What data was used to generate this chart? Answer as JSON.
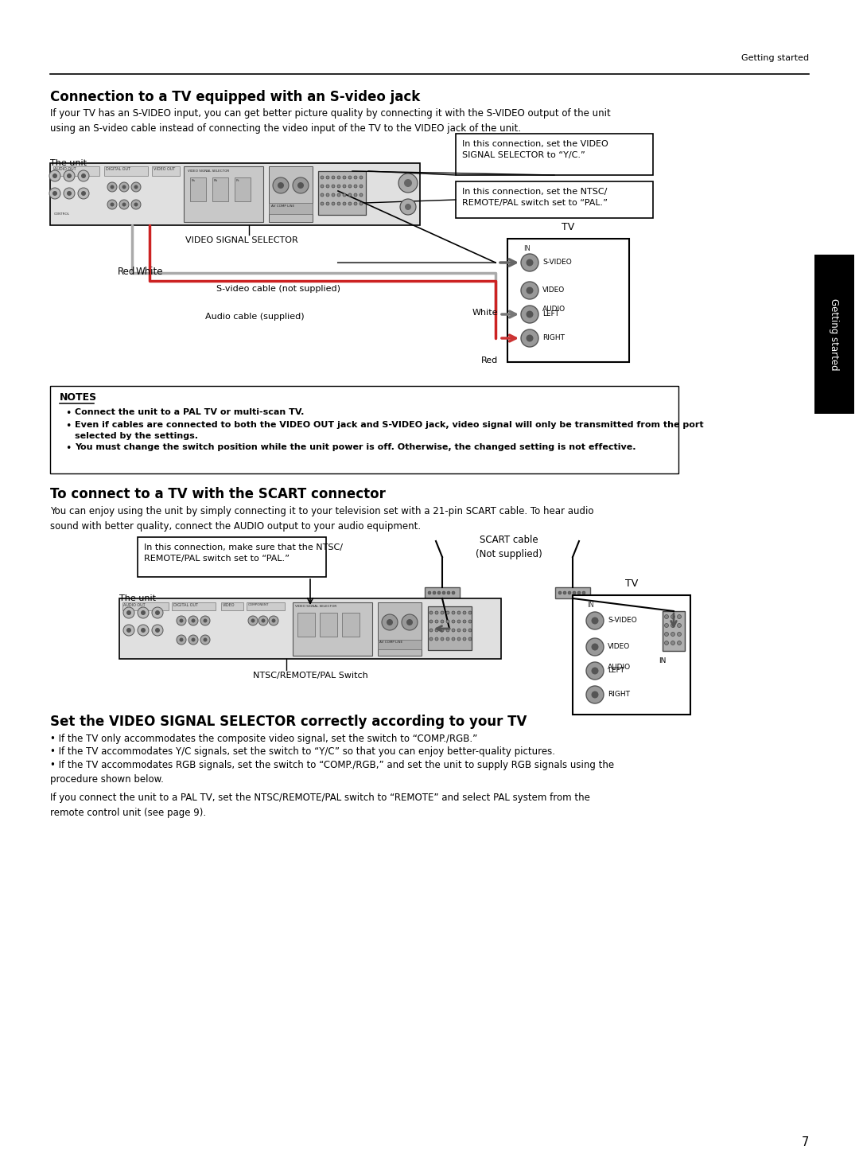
{
  "page_bg": "#ffffff",
  "header_text": "Getting started",
  "section1_title": "Connection to a TV equipped with an S-video jack",
  "section1_body": "If your TV has an S-VIDEO input, you can get better picture quality by connecting it with the S-VIDEO output of the unit\nusing an S-video cable instead of connecting the video input of the TV to the VIDEO jack of the unit.",
  "callout1_text": "In this connection, set the VIDEO\nSIGNAL SELECTOR to “Y/C.”",
  "callout2_text": "In this connection, set the NTSC/\nREMOTE/PAL switch set to “PAL.”",
  "video_sel_label": "VIDEO SIGNAL SELECTOR",
  "svideo_label": "S-video cable (not supplied)",
  "audio_label": "Audio cable (supplied)",
  "tv_label1": "TV",
  "white_label": "White",
  "red_label": "Red",
  "the_unit_label": "The unit",
  "notes_title": "NOTES",
  "notes_bullets": [
    "Connect the unit to a PAL TV or multi-scan TV.",
    "Even if cables are connected to both the VIDEO OUT jack and S-VIDEO jack, video signal will only be transmitted from the port\nselected by the settings.",
    "You must change the switch position while the unit power is off. Otherwise, the changed setting is not effective."
  ],
  "section2_title": "To connect to a TV with the SCART connector",
  "section2_body": "You can enjoy using the unit by simply connecting it to your television set with a 21-pin SCART cable. To hear audio\nsound with better quality, connect the AUDIO output to your audio equipment.",
  "callout3_text": "In this connection, make sure that the NTSC/\nREMOTE/PAL switch set to “PAL.”",
  "scart_label": "SCART cable\n(Not supplied)",
  "ntsc_label": "NTSC/REMOTE/PAL Switch",
  "tv_label2": "TV",
  "section3_title": "Set the VIDEO SIGNAL SELECTOR correctly according to your TV",
  "section3_bullets": [
    "If the TV only accommodates the composite video signal, set the switch to “COMP./RGB.”",
    "If the TV accommodates Y/C signals, set the switch to “Y/C” so that you can enjoy better-quality pictures.",
    "If the TV accommodates RGB signals, set the switch to “COMP./RGB,” and set the unit to supply RGB signals using the\nprocedure shown below."
  ],
  "section3_footer": "If you connect the unit to a PAL TV, set the NTSC/REMOTE/PAL switch to “REMOTE” and select PAL system from the\nremote control unit (see page 9).",
  "sidebar_text": "Getting started",
  "page_number": "7",
  "device_color": "#c8c8c8",
  "device_dark": "#888888",
  "connector_ring": "#909090",
  "connector_inner": "#444444",
  "tv_bg": "#f0f0f0",
  "scart_plug_color": "#a0a0a0"
}
